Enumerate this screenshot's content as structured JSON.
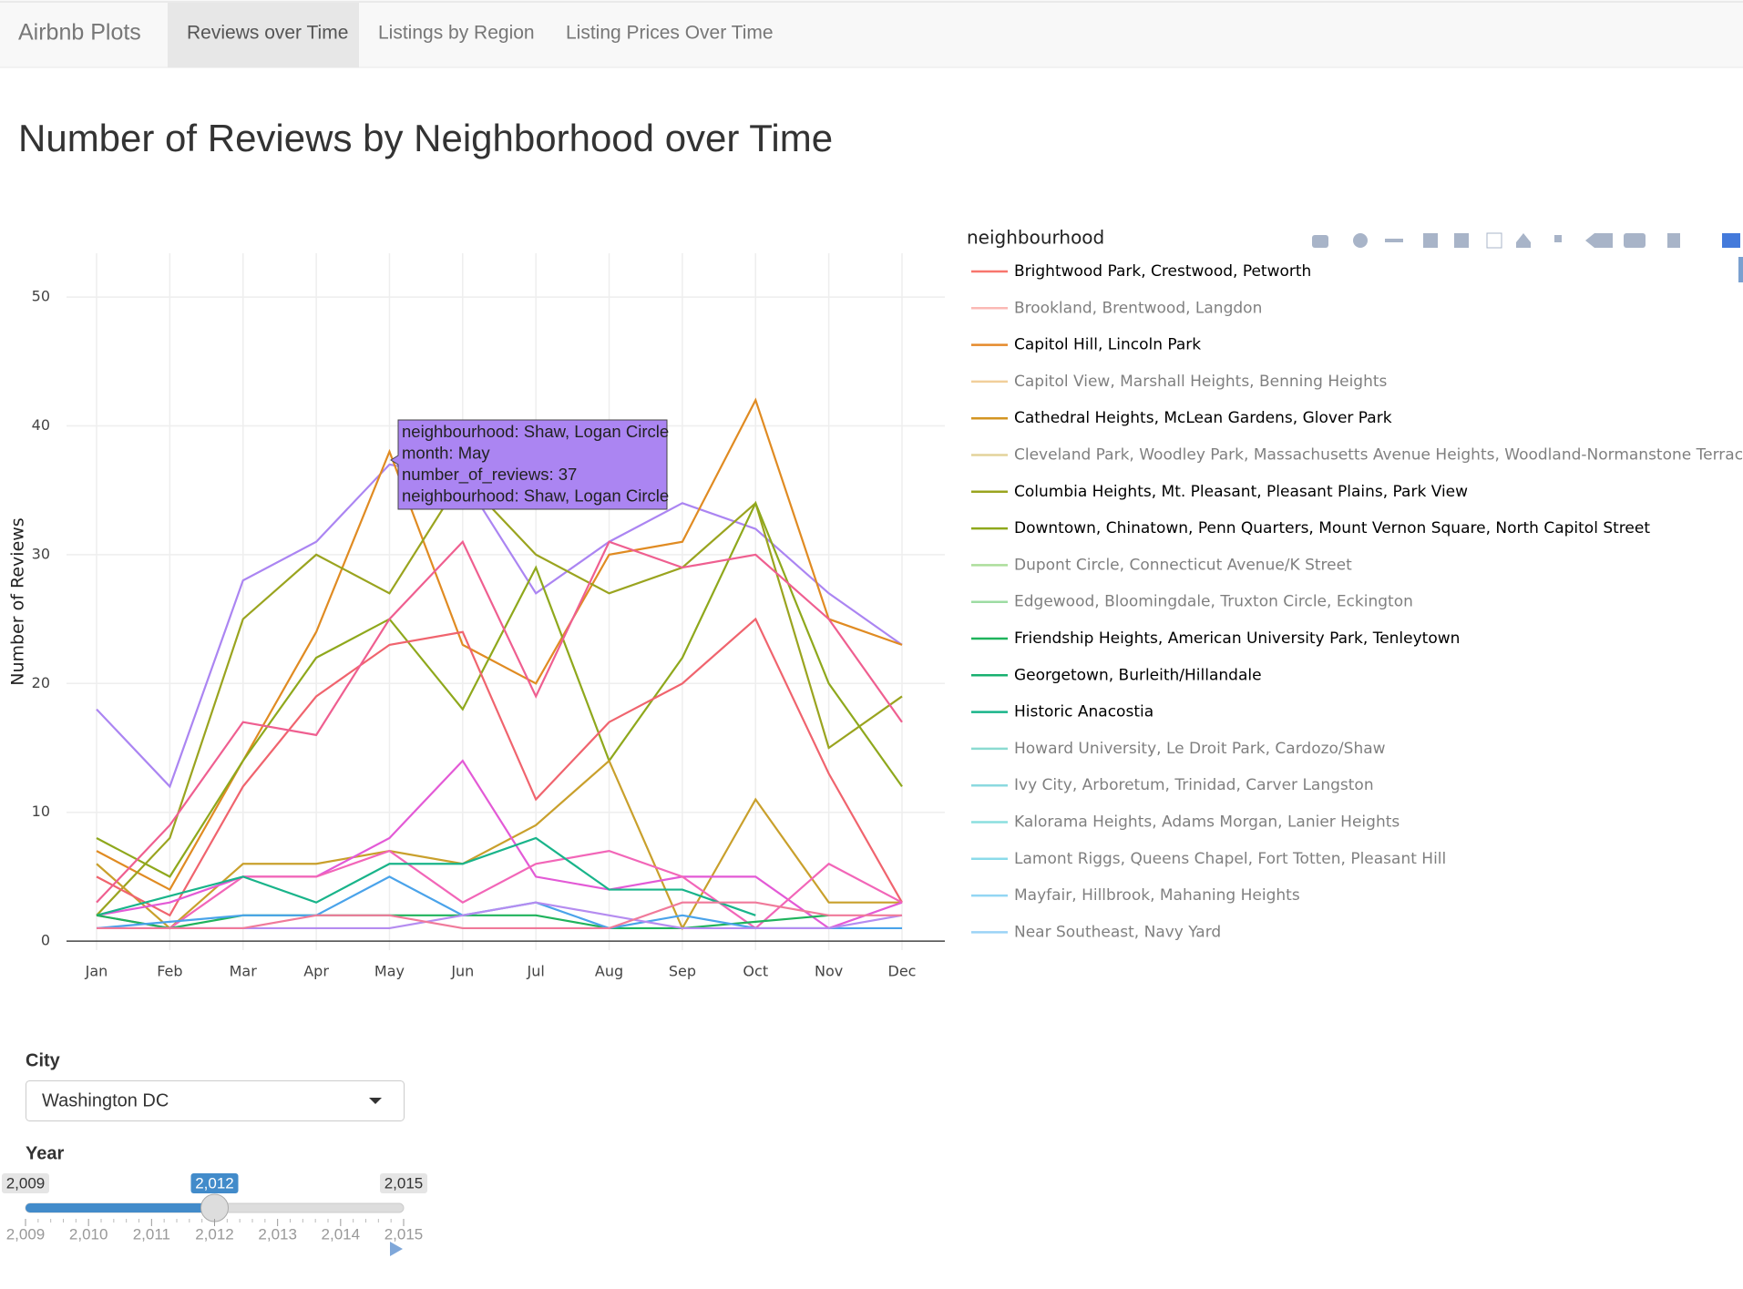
{
  "navbar": {
    "brand": "Airbnb Plots",
    "tabs": [
      "Reviews over Time",
      "Listings by Region",
      "Listing Prices Over Time"
    ],
    "active": 0
  },
  "header": {
    "title": "Number of Reviews by Neighborhood over Time"
  },
  "chart_data": {
    "type": "line",
    "y_label": "Number of Reviews",
    "categories": [
      "Jan",
      "Feb",
      "Mar",
      "Apr",
      "May",
      "Jun",
      "Jul",
      "Aug",
      "Sep",
      "Oct",
      "Nov",
      "Dec"
    ],
    "ylim": [
      -0.7,
      53.4
    ],
    "yticks": [
      0,
      10,
      20,
      30,
      40,
      50
    ],
    "grid": true,
    "series": [
      {
        "color": "#ab85f2",
        "values": [
          18,
          12,
          28,
          31,
          37,
          36,
          27,
          31,
          34,
          32,
          27,
          23
        ]
      },
      {
        "color": "#e08b22",
        "values": [
          7,
          4,
          14,
          24,
          38,
          23,
          20,
          30,
          31,
          42,
          25,
          23
        ]
      },
      {
        "color": "#9aa41f",
        "values": [
          2,
          8,
          25,
          30,
          27,
          36,
          30,
          27,
          29,
          34,
          15,
          19
        ]
      },
      {
        "color": "#8fa81c",
        "values": [
          8,
          5,
          14,
          22,
          25,
          18,
          29,
          14,
          22,
          34,
          20,
          12
        ]
      },
      {
        "color": "#c9a02c",
        "values": [
          6,
          1,
          6,
          6,
          7,
          6,
          9,
          14,
          1,
          11,
          3,
          3
        ]
      },
      {
        "color": "#f0646e",
        "values": [
          5,
          2,
          12,
          19,
          23,
          24,
          11,
          17,
          20,
          25,
          13,
          3
        ]
      },
      {
        "color": "#ef5f90",
        "values": [
          3,
          9,
          17,
          16,
          25,
          31,
          19,
          31,
          29,
          30,
          25,
          17
        ]
      },
      {
        "color": "#e35ad6",
        "values": [
          2,
          3,
          5,
          5,
          8,
          14,
          5,
          4,
          5,
          5,
          1,
          3
        ]
      },
      {
        "color": "#f266b8",
        "values": [
          2,
          1,
          5,
          5,
          7,
          3,
          6,
          7,
          5,
          1,
          6,
          3
        ]
      },
      {
        "color": "#19b48a",
        "values": [
          2,
          3.5,
          5,
          3,
          6,
          6,
          8,
          4,
          4,
          2,
          null,
          null
        ]
      },
      {
        "color": "#1fb35c",
        "values": [
          2,
          1,
          2,
          2,
          2,
          2,
          2,
          1,
          1,
          1.5,
          2,
          null
        ]
      },
      {
        "color": "#4aa3ea",
        "values": [
          1,
          1.5,
          2,
          2,
          5,
          2,
          3,
          1,
          2,
          1,
          1,
          1
        ]
      },
      {
        "color": "#b58cf0",
        "values": [
          1,
          1,
          1,
          1,
          1,
          2,
          3,
          2,
          1,
          1,
          1,
          2
        ]
      },
      {
        "color": "#f07a9a",
        "values": [
          1,
          1,
          1,
          2,
          2,
          1,
          1,
          1,
          3,
          3,
          2,
          2
        ]
      }
    ],
    "tooltip": {
      "lines": [
        "neighbourhood: Shaw, Logan Circle",
        "month: May",
        "number_of_reviews: 37",
        "neighbourhood: Shaw, Logan Circle"
      ],
      "color": "#ab85f2"
    },
    "legend": {
      "title": "neighbourhood",
      "items": [
        {
          "name": "Brightwood Park, Crestwood, Petworth",
          "color": "#f8766d",
          "active": true
        },
        {
          "name": "Brookland, Brentwood, Langdon",
          "color": "#f8766d",
          "active": false
        },
        {
          "name": "Capitol Hill, Lincoln Park",
          "color": "#e58a2b",
          "active": true
        },
        {
          "name": "Capitol View, Marshall Heights, Benning Heights",
          "color": "#e5a03a",
          "active": false
        },
        {
          "name": "Cathedral Heights, McLean Gardens, Glover Park",
          "color": "#d39522",
          "active": true
        },
        {
          "name": "Cleveland Park, Woodley Park, Massachusetts Avenue Heights, Woodland-Normanstone Terrace",
          "color": "#c9a83a",
          "active": false
        },
        {
          "name": "Columbia Heights, Mt. Pleasant, Pleasant Plains, Park View",
          "color": "#9aa41f",
          "active": true
        },
        {
          "name": "Downtown, Chinatown, Penn Quarters, Mount Vernon Square, North Capitol Street",
          "color": "#8fa81c",
          "active": true
        },
        {
          "name": "Dupont Circle, Connecticut Avenue/K Street",
          "color": "#5cbf3a",
          "active": false
        },
        {
          "name": "Edgewood, Bloomingdale, Truxton Circle, Eckington",
          "color": "#3dbb4a",
          "active": false
        },
        {
          "name": "Friendship Heights, American University Park, Tenleytown",
          "color": "#1fb35c",
          "active": true
        },
        {
          "name": "Georgetown, Burleith/Hillandale",
          "color": "#19b070",
          "active": true
        },
        {
          "name": "Historic Anacostia",
          "color": "#19b48a",
          "active": true
        },
        {
          "name": "Howard University, Le Droit Park, Cardozo/Shaw",
          "color": "#1ab9a5",
          "active": false
        },
        {
          "name": "Ivy City, Arboretum, Trinidad, Carver Langston",
          "color": "#1ab5c0",
          "active": false
        },
        {
          "name": "Kalorama Heights, Adams Morgan, Lanier Heights",
          "color": "#1ac0c0",
          "active": false
        },
        {
          "name": "Lamont Riggs, Queens Chapel, Fort Totten, Pleasant Hill",
          "color": "#1ab8d6",
          "active": false
        },
        {
          "name": "Mayfair, Hillbrook, Mahaning Heights",
          "color": "#2aaee8",
          "active": false
        },
        {
          "name": "Near Southeast, Navy Yard",
          "color": "#3aa8ee",
          "active": false
        }
      ]
    }
  },
  "controls": {
    "city_label": "City",
    "city_value": "Washington DC",
    "year_slider": {
      "label": "Year",
      "min": {
        "value": 2009,
        "label": "2,009"
      },
      "max": {
        "value": 2015,
        "label": "2,015"
      },
      "value": {
        "value": 2012,
        "label": "2,012"
      },
      "ticks": [
        {
          "value": 2009,
          "label": "2,009"
        },
        {
          "value": 2010,
          "label": "2,010"
        },
        {
          "value": 2011,
          "label": "2,011"
        },
        {
          "value": 2012,
          "label": "2,012"
        },
        {
          "value": 2013,
          "label": "2,013"
        },
        {
          "value": 2014,
          "label": "2,014"
        },
        {
          "value": 2015,
          "label": "2,015"
        }
      ]
    }
  }
}
